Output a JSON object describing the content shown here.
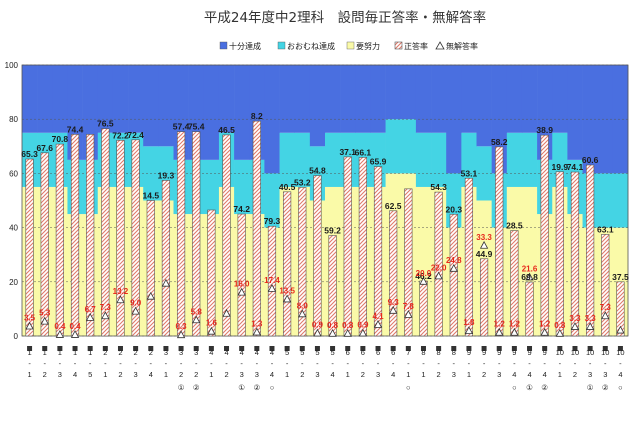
{
  "chart_data": {
    "type": "bar",
    "title": "平成24年度中2理科　設問毎正答率・無解答率",
    "ylim": [
      0,
      100
    ],
    "yticks": [
      0,
      20,
      40,
      60,
      80,
      100
    ],
    "grid": true,
    "legend_position": "top-right",
    "legend": [
      {
        "label": "十分達成",
        "color": "#4a6fe0"
      },
      {
        "label": "おおむね達成",
        "color": "#44d4e4"
      },
      {
        "label": "要努力",
        "color": "#fafaa8"
      },
      {
        "label": "正答率",
        "color": "#e8a090"
      },
      {
        "label": "無解答率",
        "marker": "triangle"
      }
    ],
    "categories": [
      "1(1)",
      "1(2)",
      "1(3)",
      "1(4)",
      "1(5)",
      "2(1)",
      "2(2)",
      "2(3)",
      "2(4)",
      "3(1)",
      "3(2)①",
      "3(2)②",
      "4(1)",
      "4(2)",
      "4(3)①",
      "4(3)②",
      "4(4)○",
      "5(1)",
      "5(2)",
      "5(3)",
      "5(4)",
      "6(1)",
      "6(2)",
      "6(3)",
      "6(4)",
      "7(1)○",
      "8(1)",
      "8(2)",
      "8(3)",
      "9(1)",
      "9(2)",
      "9(3)",
      "9(4)○",
      "9(4)①",
      "9(4)②",
      "10(1)",
      "10(2)",
      "10(3)①",
      "10(3)②",
      "10(4)○"
    ],
    "category_marks": [
      "",
      "",
      "",
      "",
      "",
      "",
      "",
      "",
      "",
      "",
      "①",
      "②",
      "",
      "",
      "①",
      "②",
      "○",
      "",
      "",
      "",
      "",
      "",
      "",
      "",
      "",
      "○",
      "",
      "",
      "",
      "",
      "",
      "",
      "○",
      "①",
      "②",
      "",
      "",
      "①",
      "②",
      "○"
    ],
    "bands": {
      "yodoryoku_upper": [
        55,
        55,
        55,
        45,
        45,
        55,
        55,
        55,
        50,
        50,
        45,
        45,
        45,
        55,
        45,
        45,
        40,
        55,
        55,
        50,
        55,
        55,
        55,
        55,
        60,
        60,
        55,
        55,
        40,
        55,
        50,
        40,
        55,
        55,
        45,
        55,
        45,
        40,
        40,
        40
      ],
      "oomune_upper": [
        75,
        75,
        75,
        65,
        65,
        75,
        75,
        75,
        70,
        70,
        65,
        65,
        65,
        75,
        65,
        65,
        60,
        75,
        75,
        70,
        75,
        75,
        75,
        75,
        80,
        80,
        75,
        75,
        60,
        75,
        70,
        60,
        75,
        75,
        65,
        75,
        65,
        60,
        60,
        60
      ]
    },
    "series": [
      {
        "name": "正答率",
        "values": [
          65.3,
          67.6,
          70.8,
          74.4,
          74.4,
          76.5,
          72.2,
          72.4,
          50.0,
          57.4,
          75.4,
          75.4,
          46.5,
          74.2,
          45.0,
          79.3,
          40.5,
          53.2,
          54.8,
          59.2,
          37.1,
          66.1,
          65.9,
          62.5,
          46.2,
          54.3,
          20.3,
          53.1,
          44.9,
          58.2,
          28.5,
          69.8,
          38.9,
          19.9,
          74.1,
          60.6,
          60.5,
          63.1,
          37.5,
          20.0
        ]
      },
      {
        "name": "無解答率",
        "values": [
          3.5,
          5.3,
          0.4,
          0.4,
          6.7,
          7.3,
          13.2,
          9.0,
          14.5,
          19.3,
          0.3,
          5.8,
          1.6,
          8.2,
          16.0,
          1.3,
          17.4,
          13.5,
          8.0,
          0.9,
          0.8,
          0.8,
          0.9,
          4.1,
          9.3,
          7.8,
          20.0,
          22.0,
          24.8,
          1.8,
          33.3,
          1.2,
          1.2,
          21.6,
          1.2,
          0.8,
          3.3,
          3.3,
          7.3,
          2.0
        ]
      }
    ],
    "value_labels_black": [
      {
        "index": 0,
        "text": "65.3"
      },
      {
        "index": 1,
        "text": "67.6"
      },
      {
        "index": 2,
        "text": "70.8"
      },
      {
        "index": 3,
        "text": "74.4"
      },
      {
        "index": 5,
        "text": "76.5"
      },
      {
        "index": 6,
        "text": "72.2"
      },
      {
        "index": 7,
        "text": "72.4"
      },
      {
        "index": 8,
        "text": "14.5"
      },
      {
        "index": 9,
        "text": "19.3"
      },
      {
        "index": 10,
        "text": "57.4"
      },
      {
        "index": 11,
        "text": "75.4"
      },
      {
        "index": 13,
        "text": "46.5"
      },
      {
        "index": 14,
        "text": "74.2"
      },
      {
        "index": 15,
        "text": "8.2"
      },
      {
        "index": 16,
        "text": "79.3"
      },
      {
        "index": 17,
        "text": "40.5"
      },
      {
        "index": 18,
        "text": "53.2"
      },
      {
        "index": 19,
        "text": "54.8"
      },
      {
        "index": 20,
        "text": "59.2"
      },
      {
        "index": 21,
        "text": "37.1"
      },
      {
        "index": 22,
        "text": "66.1"
      },
      {
        "index": 23,
        "text": "65.9"
      },
      {
        "index": 24,
        "text": "62.5"
      },
      {
        "index": 26,
        "text": "46.2"
      },
      {
        "index": 27,
        "text": "54.3"
      },
      {
        "index": 28,
        "text": "20.3"
      },
      {
        "index": 29,
        "text": "53.1"
      },
      {
        "index": 30,
        "text": "44.9"
      },
      {
        "index": 31,
        "text": "58.2"
      },
      {
        "index": 32,
        "text": "28.5"
      },
      {
        "index": 33,
        "text": "69.8"
      },
      {
        "index": 34,
        "text": "38.9"
      },
      {
        "index": 35,
        "text": "19.9"
      },
      {
        "index": 36,
        "text": "74.1"
      },
      {
        "index": 37,
        "text": "60.6"
      },
      {
        "index": 38,
        "text": "63.1"
      },
      {
        "index": 39,
        "text": "37.5"
      }
    ],
    "value_labels_red": [
      {
        "index": 0,
        "text": "3.5"
      },
      {
        "index": 1,
        "text": "5.3"
      },
      {
        "index": 2,
        "text": "0.4"
      },
      {
        "index": 3,
        "text": "0.4"
      },
      {
        "index": 4,
        "text": "6.7"
      },
      {
        "index": 5,
        "text": "7.3"
      },
      {
        "index": 6,
        "text": "13.2"
      },
      {
        "index": 7,
        "text": "9.0"
      },
      {
        "index": 10,
        "text": "0.3"
      },
      {
        "index": 11,
        "text": "5.8"
      },
      {
        "index": 12,
        "text": "1.6"
      },
      {
        "index": 14,
        "text": "16.0"
      },
      {
        "index": 15,
        "text": "1.3"
      },
      {
        "index": 16,
        "text": "17.4"
      },
      {
        "index": 17,
        "text": "13.5"
      },
      {
        "index": 18,
        "text": "8.0"
      },
      {
        "index": 19,
        "text": "0.9"
      },
      {
        "index": 20,
        "text": "0.8"
      },
      {
        "index": 21,
        "text": "0.8"
      },
      {
        "index": 22,
        "text": "0.9"
      },
      {
        "index": 23,
        "text": "4.1"
      },
      {
        "index": 24,
        "text": "9.3"
      },
      {
        "index": 25,
        "text": "7.8"
      },
      {
        "index": 26,
        "text": "20.0"
      },
      {
        "index": 27,
        "text": "22.0"
      },
      {
        "index": 28,
        "text": "24.8"
      },
      {
        "index": 29,
        "text": "1.8"
      },
      {
        "index": 30,
        "text": "33.3"
      },
      {
        "index": 31,
        "text": "1.2"
      },
      {
        "index": 32,
        "text": "1.2"
      },
      {
        "index": 33,
        "text": "21.6"
      },
      {
        "index": 34,
        "text": "1.2"
      },
      {
        "index": 35,
        "text": "0.8"
      },
      {
        "index": 36,
        "text": "3.3"
      },
      {
        "index": 37,
        "text": "3.3"
      },
      {
        "index": 38,
        "text": "7.3"
      }
    ]
  }
}
